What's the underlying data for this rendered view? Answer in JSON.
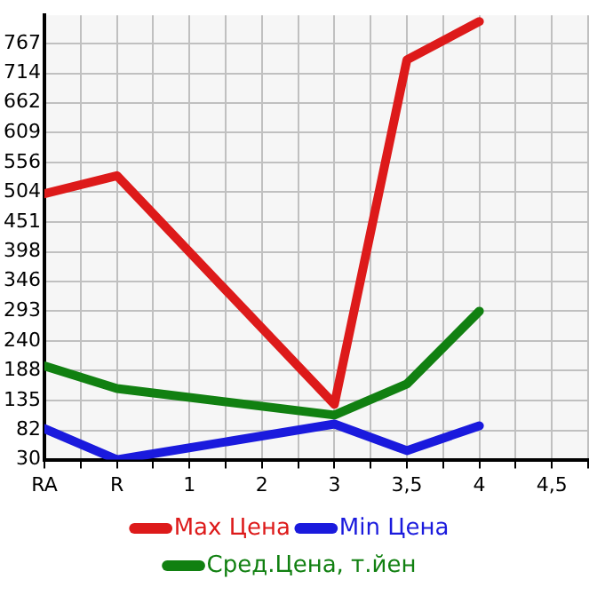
{
  "chart_data": {
    "type": "line",
    "categories": [
      "RA",
      "R",
      "1",
      "2",
      "3",
      "3,5",
      "4",
      "4,5"
    ],
    "series": [
      {
        "name": "Max Цена",
        "color": "#dd1a1a",
        "values": [
          501,
          533,
          null,
          null,
          128,
          738,
          806,
          null
        ]
      },
      {
        "name": "Min Цена",
        "color": "#1a1add",
        "values": [
          85,
          30,
          null,
          null,
          93,
          46,
          90,
          null
        ]
      },
      {
        "name": "Сред.Цена, т.йен",
        "color": "#118011",
        "values": [
          196,
          156,
          null,
          null,
          109,
          164,
          293,
          null
        ]
      }
    ],
    "ylim": [
      30,
      817
    ],
    "yticks": [
      30,
      82,
      135,
      188,
      240,
      293,
      346,
      398,
      451,
      504,
      556,
      609,
      662,
      714,
      767
    ],
    "grid": true,
    "legend": "bottom",
    "marker": "none",
    "line_style": "solid"
  }
}
